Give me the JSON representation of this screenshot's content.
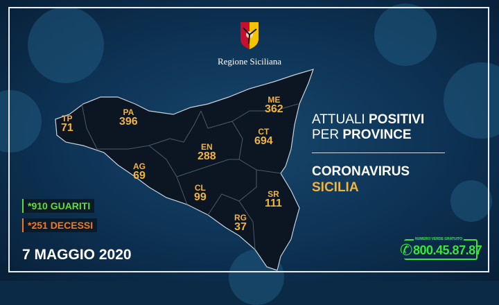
{
  "logo": {
    "text": "Regione Siciliana",
    "icon": "trinacria-emblem"
  },
  "title": {
    "line1_normal": "ATTUALI ",
    "line1_bold": "POSITIVI",
    "line2_normal": "PER ",
    "line2_bold": "PROVINCE"
  },
  "subtitle": {
    "line1": "CORONAVIRUS",
    "line2": "SICILIA"
  },
  "provinces": [
    {
      "code": "TP",
      "value": "71"
    },
    {
      "code": "PA",
      "value": "396"
    },
    {
      "code": "ME",
      "value": "362"
    },
    {
      "code": "CT",
      "value": "694"
    },
    {
      "code": "EN",
      "value": "288"
    },
    {
      "code": "AG",
      "value": "69"
    },
    {
      "code": "CL",
      "value": "99"
    },
    {
      "code": "SR",
      "value": "111"
    },
    {
      "code": "RG",
      "value": "37"
    }
  ],
  "stats": {
    "recovered": "*910 GUARITI",
    "deaths": "*251 DECESSI"
  },
  "date": "7 MAGGIO 2020",
  "hotline": {
    "label": "NUMERO VERDE GRATUITO",
    "number": "800.45.87.87",
    "icon": "phone-icon"
  },
  "colors": {
    "value": "#f2b43a",
    "recovered": "#5be03a",
    "deaths": "#f07a2a",
    "subtitle": "#ffffff",
    "subtitle2": "#f2b43a",
    "hotline": "#37e63b",
    "map": "#0c1622"
  }
}
